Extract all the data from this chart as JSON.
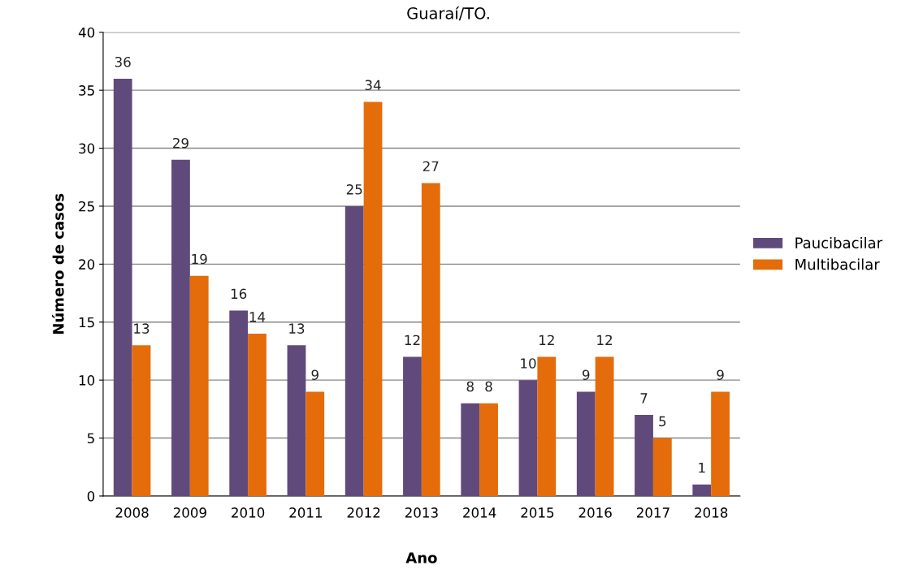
{
  "chart_data": {
    "type": "bar",
    "title": "Guaraí/TO.",
    "xlabel": "Ano",
    "ylabel": "Número de casos",
    "categories": [
      "2008",
      "2009",
      "2010",
      "2011",
      "2012",
      "2013",
      "2014",
      "2015",
      "2016",
      "2017",
      "2018"
    ],
    "series": [
      {
        "name": "Paucibacilar",
        "color": "#604a7b",
        "values": [
          36,
          29,
          16,
          13,
          25,
          12,
          8,
          10,
          9,
          7,
          1
        ]
      },
      {
        "name": "Multibacilar",
        "color": "#e46c0a",
        "values": [
          13,
          19,
          14,
          9,
          34,
          27,
          8,
          12,
          12,
          5,
          9
        ]
      }
    ],
    "ylim": [
      0,
      40
    ],
    "yticks": [
      0,
      5,
      10,
      15,
      20,
      25,
      30,
      35,
      40
    ],
    "grid": "y",
    "legend": "right",
    "data_labels": true
  }
}
